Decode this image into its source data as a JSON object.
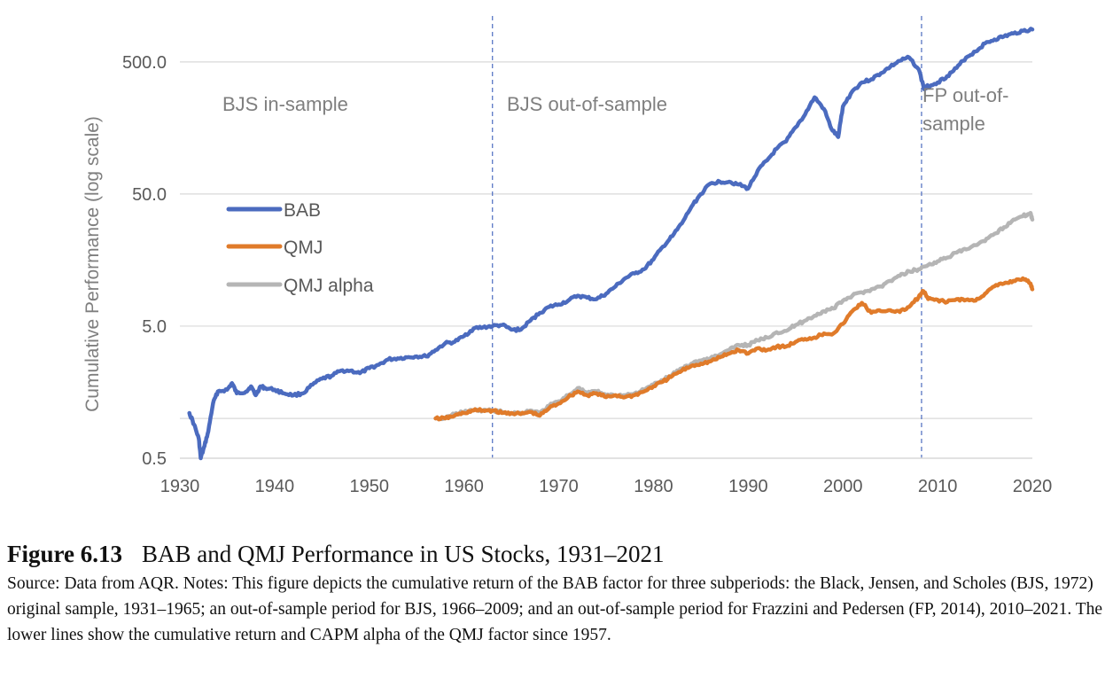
{
  "caption": {
    "figure_label": "Figure 6.13",
    "figure_title": "BAB and QMJ Performance in US Stocks, 1931–2021",
    "note": "Source: Data from AQR. Notes: This figure depicts the cumulative return of the BAB factor for three subperiods: the Black, Jensen, and Scholes (BJS, 1972) original sample, 1931–1965; an out-of-sample period for BJS, 1966–2009; and an out-of-sample period for Frazzini and Pedersen (FP, 2014), 2010–2021. The lower lines show the cumulative return and CAPM alpha of the QMJ factor since 1957."
  },
  "chart_data": {
    "type": "line",
    "title": "",
    "xlabel": "",
    "ylabel": "Cumulative Performance (log scale)",
    "yscale": "log",
    "xlim": [
      1930,
      2020
    ],
    "ylim": [
      0.5,
      1000
    ],
    "x_ticks": [
      "1930",
      "1940",
      "1950",
      "1960",
      "1970",
      "1980",
      "1990",
      "2000",
      "2010",
      "2020"
    ],
    "y_ticks": [
      {
        "value": 0.5,
        "label": "0.5"
      },
      {
        "value": 5,
        "label": "5.0"
      },
      {
        "value": 50,
        "label": "50.0"
      },
      {
        "value": 500,
        "label": "500.0"
      }
    ],
    "grid": "horizontal",
    "legend": {
      "placement": "center-left"
    },
    "period_markers": [
      {
        "x": 1963,
        "label": "BJS out-of-sample"
      },
      {
        "x": 2008.3,
        "label": "FP out-of-sample"
      }
    ],
    "period_labels": [
      {
        "lines": [
          "BJS in-sample"
        ],
        "x": 1931
      },
      {
        "lines": [
          "BJS out-of-sample"
        ],
        "x": 1964
      },
      {
        "lines": [
          "FP out-of-",
          "sample"
        ],
        "x": 2009
      }
    ],
    "series": [
      {
        "name": "BAB",
        "color": "#4b6bbf",
        "x": [
          1931,
          1931.5,
          1932,
          1932.2,
          1932.6,
          1933,
          1933.5,
          1934,
          1935,
          1935.5,
          1936,
          1937,
          1937.5,
          1938,
          1938.5,
          1939,
          1940,
          1941,
          1942,
          1943,
          1944,
          1945,
          1946,
          1947,
          1948,
          1949,
          1950,
          1951,
          1952,
          1953,
          1954,
          1955,
          1956,
          1957,
          1958,
          1959,
          1960,
          1961,
          1962,
          1963,
          1964,
          1965,
          1966,
          1967,
          1968,
          1969,
          1970,
          1971,
          1972,
          1973,
          1974,
          1975,
          1976,
          1977,
          1978,
          1979,
          1980,
          1981,
          1982,
          1983,
          1984,
          1985,
          1986,
          1987,
          1988,
          1989,
          1990,
          1991,
          1992,
          1993,
          1994,
          1995,
          1996,
          1997,
          1998,
          1998.8,
          1999.5,
          2000,
          2001,
          2002,
          2003,
          2004,
          2005,
          2006,
          2007,
          2008,
          2008.6,
          2009,
          2010,
          2011,
          2012,
          2013,
          2014,
          2015,
          2016,
          2017,
          2018,
          2019,
          2020
        ],
        "values": [
          1.1,
          0.9,
          0.7,
          0.5,
          0.62,
          0.8,
          1.3,
          1.6,
          1.65,
          1.85,
          1.55,
          1.6,
          1.75,
          1.5,
          1.75,
          1.7,
          1.65,
          1.55,
          1.5,
          1.55,
          1.8,
          2.0,
          2.1,
          2.3,
          2.3,
          2.2,
          2.4,
          2.55,
          2.8,
          2.85,
          2.9,
          2.95,
          2.95,
          3.3,
          3.7,
          3.8,
          4.2,
          4.8,
          4.9,
          5.0,
          5.1,
          4.7,
          4.7,
          5.5,
          6.3,
          7.0,
          7.3,
          7.8,
          8.5,
          8.2,
          8.0,
          8.8,
          10.0,
          11.5,
          12.5,
          13.5,
          16.0,
          20.0,
          24.0,
          30.0,
          40.0,
          50.0,
          60.0,
          62.0,
          62.0,
          59.0,
          55.0,
          75.0,
          90.0,
          110.0,
          125.0,
          160.0,
          200.0,
          270.0,
          220.0,
          155.0,
          135.0,
          230.0,
          300.0,
          350.0,
          370.0,
          410.0,
          460.0,
          510.0,
          540.0,
          440.0,
          310.0,
          330.0,
          350.0,
          390.0,
          450.0,
          540.0,
          600.0,
          690.0,
          740.0,
          780.0,
          820.0,
          860.0,
          880.0
        ]
      },
      {
        "name": "QMJ",
        "color": "#e07b2a",
        "x": [
          1957,
          1958,
          1959,
          1960,
          1961,
          1962,
          1963,
          1964,
          1965,
          1966,
          1967,
          1968,
          1969,
          1970,
          1971,
          1972,
          1973,
          1974,
          1975,
          1976,
          1977,
          1978,
          1979,
          1980,
          1981,
          1982,
          1983,
          1984,
          1985,
          1986,
          1987,
          1988,
          1989,
          1990,
          1991,
          1992,
          1993,
          1994,
          1995,
          1996,
          1997,
          1998,
          1999,
          2000,
          2001,
          2002,
          2003,
          2004,
          2005,
          2006,
          2007,
          2008,
          2008.5,
          2009,
          2010,
          2011,
          2012,
          2013,
          2014,
          2015,
          2016,
          2017,
          2018,
          2019,
          2019.8,
          2020
        ],
        "values": [
          1.0,
          1.0,
          1.05,
          1.1,
          1.15,
          1.15,
          1.15,
          1.1,
          1.1,
          1.08,
          1.12,
          1.05,
          1.2,
          1.3,
          1.45,
          1.6,
          1.5,
          1.55,
          1.45,
          1.5,
          1.45,
          1.5,
          1.6,
          1.75,
          1.9,
          2.1,
          2.3,
          2.5,
          2.6,
          2.7,
          2.9,
          3.1,
          3.3,
          3.1,
          3.4,
          3.3,
          3.5,
          3.5,
          3.8,
          4.0,
          4.1,
          4.4,
          4.4,
          5.2,
          6.5,
          7.5,
          6.3,
          6.5,
          6.6,
          6.4,
          7.0,
          8.3,
          9.2,
          8.0,
          7.9,
          7.6,
          8.0,
          7.9,
          7.8,
          8.8,
          10.0,
          10.5,
          11.0,
          11.5,
          10.5,
          9.5
        ]
      },
      {
        "name": "QMJ  alpha",
        "color": "#b5b5b5",
        "x": [
          1957,
          1958,
          1959,
          1960,
          1961,
          1962,
          1963,
          1964,
          1965,
          1966,
          1967,
          1968,
          1969,
          1970,
          1971,
          1972,
          1973,
          1974,
          1975,
          1976,
          1977,
          1978,
          1979,
          1980,
          1981,
          1982,
          1983,
          1984,
          1985,
          1986,
          1987,
          1988,
          1989,
          1990,
          1991,
          1992,
          1993,
          1994,
          1995,
          1996,
          1997,
          1998,
          1999,
          2000,
          2001,
          2002,
          2003,
          2004,
          2005,
          2006,
          2007,
          2008,
          2009,
          2010,
          2011,
          2012,
          2013,
          2014,
          2015,
          2016,
          2017,
          2018,
          2019,
          2019.8,
          2020
        ],
        "values": [
          1.0,
          1.0,
          1.08,
          1.12,
          1.15,
          1.15,
          1.15,
          1.12,
          1.1,
          1.1,
          1.15,
          1.1,
          1.25,
          1.35,
          1.5,
          1.7,
          1.55,
          1.6,
          1.5,
          1.5,
          1.5,
          1.55,
          1.65,
          1.8,
          1.95,
          2.15,
          2.4,
          2.6,
          2.75,
          2.85,
          3.05,
          3.3,
          3.6,
          3.6,
          3.9,
          4.1,
          4.5,
          4.6,
          5.1,
          5.5,
          6.0,
          6.5,
          6.8,
          7.8,
          8.5,
          9.0,
          9.5,
          10.0,
          11.0,
          12.0,
          13.0,
          13.5,
          14.5,
          15.5,
          16.5,
          18.0,
          19.0,
          20.5,
          22.0,
          25.0,
          28.0,
          32.0,
          34.0,
          36.0,
          32.0
        ]
      }
    ]
  }
}
